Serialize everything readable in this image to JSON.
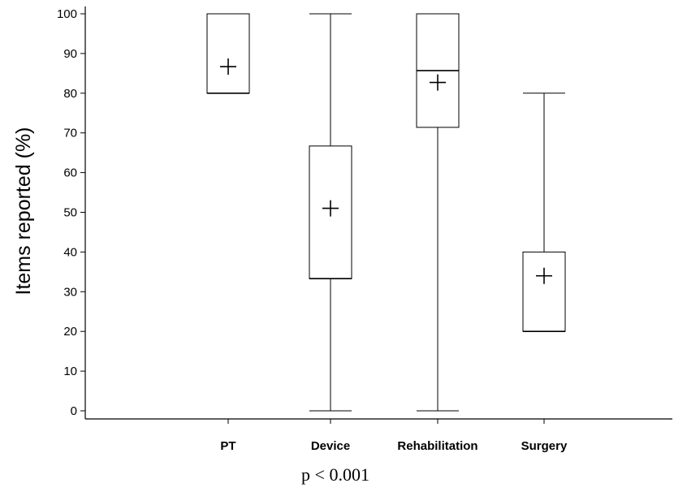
{
  "chart_data": {
    "type": "box",
    "ylabel": "Items reported  (%)",
    "ylim": [
      0,
      100
    ],
    "yticks": [
      0,
      10,
      20,
      30,
      40,
      50,
      60,
      70,
      80,
      90,
      100
    ],
    "categories": [
      "PT",
      "Device",
      "Rehabilitation",
      "Surgery"
    ],
    "boxes": [
      {
        "category": "PT",
        "min": 80,
        "q1": 80,
        "median": 80,
        "q3": 100,
        "max": 100,
        "mean": 86.7
      },
      {
        "category": "Device",
        "min": 0,
        "q1": 33.3,
        "median": 33.3,
        "q3": 66.7,
        "max": 100,
        "mean": 51
      },
      {
        "category": "Rehabilitation",
        "min": 0,
        "q1": 71.4,
        "median": 85.7,
        "q3": 100,
        "max": 100,
        "mean": 82.7
      },
      {
        "category": "Surgery",
        "min": 20,
        "q1": 20,
        "median": 20,
        "q3": 40,
        "max": 80,
        "mean": 34
      }
    ],
    "annotation": "p < 0.001",
    "grid": false,
    "colors": {
      "stroke": "#000000",
      "fill": "#ffffff"
    }
  }
}
